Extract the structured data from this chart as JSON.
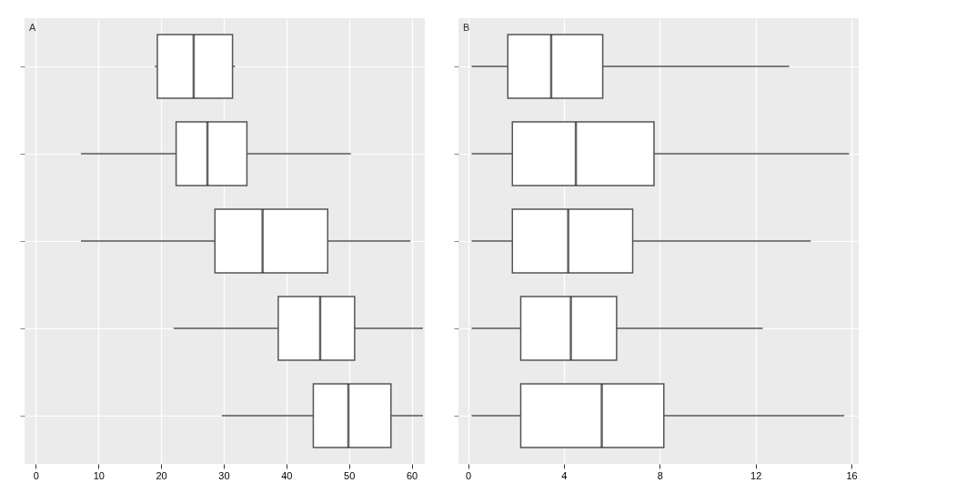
{
  "chart_data": [
    {
      "type": "box",
      "orientation": "horizontal",
      "categories": [
        null,
        null,
        null,
        null,
        null
      ],
      "xlim": [
        -1.8,
        62.1
      ],
      "xticks": [
        0,
        10,
        20,
        30,
        40,
        50,
        60
      ],
      "grid": true,
      "color": "#555555",
      "annotations": [
        "A"
      ],
      "boxes": [
        {
          "low": 19.0,
          "q1": 19.4,
          "median": 25.2,
          "q3": 31.4,
          "high": 31.8
        },
        {
          "low": 7.2,
          "q1": 22.4,
          "median": 27.4,
          "q3": 33.7,
          "high": 50.3
        },
        {
          "low": 7.2,
          "q1": 28.6,
          "median": 36.2,
          "q3": 46.6,
          "high": 59.8
        },
        {
          "low": 22.0,
          "q1": 38.7,
          "median": 45.4,
          "q3": 50.9,
          "high": 61.8
        },
        {
          "low": 29.7,
          "q1": 44.3,
          "median": 49.9,
          "q3": 56.7,
          "high": 61.8
        }
      ]
    },
    {
      "type": "box",
      "orientation": "horizontal",
      "categories": [
        null,
        null,
        null,
        null,
        null
      ],
      "xlim": [
        -0.4,
        16.3
      ],
      "xticks": [
        0,
        4,
        8,
        12,
        16
      ],
      "grid": true,
      "color": "#555555",
      "annotations": [
        "B"
      ],
      "boxes": [
        {
          "low": 0.15,
          "q1": 1.66,
          "median": 3.47,
          "q3": 5.62,
          "high": 13.4
        },
        {
          "low": 0.15,
          "q1": 1.85,
          "median": 4.5,
          "q3": 7.76,
          "high": 15.9
        },
        {
          "low": 0.15,
          "q1": 1.85,
          "median": 4.18,
          "q3": 6.87,
          "high": 14.3
        },
        {
          "low": 0.15,
          "q1": 2.2,
          "median": 4.29,
          "q3": 6.2,
          "high": 12.3
        },
        {
          "low": 0.15,
          "q1": 2.2,
          "median": 5.58,
          "q3": 8.17,
          "high": 15.7
        }
      ]
    }
  ]
}
